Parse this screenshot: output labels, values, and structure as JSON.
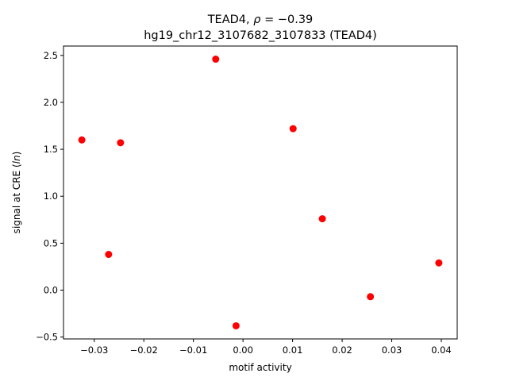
{
  "chart_data": {
    "type": "scatter",
    "title_line1_prefix": "TEAD4, ",
    "title_line1_rho": "ρ",
    "title_line1_suffix": " = −0.39",
    "title_line2": "hg19_chr12_3107682_3107833 (TEAD4)",
    "xlabel": "motif activity",
    "ylabel_prefix": "signal at CRE (",
    "ylabel_italic": "ln",
    "ylabel_suffix": ")",
    "xlim": [
      -0.0362,
      0.0432
    ],
    "ylim": [
      -0.52,
      2.6
    ],
    "xticks": [
      -0.03,
      -0.02,
      -0.01,
      0.0,
      0.01,
      0.02,
      0.03,
      0.04
    ],
    "xtick_labels": [
      "−0.03",
      "−0.02",
      "−0.01",
      "0.00",
      "0.01",
      "0.02",
      "0.03",
      "0.04"
    ],
    "yticks": [
      -0.5,
      0.0,
      0.5,
      1.0,
      1.5,
      2.0,
      2.5
    ],
    "ytick_labels": [
      "−0.5",
      "0.0",
      "0.5",
      "1.0",
      "1.5",
      "2.0",
      "2.5"
    ],
    "grid": false,
    "marker_color": "#ff0000",
    "points": [
      {
        "x": -0.0325,
        "y": 1.6
      },
      {
        "x": -0.0271,
        "y": 0.38
      },
      {
        "x": -0.0247,
        "y": 1.57
      },
      {
        "x": -0.0055,
        "y": 2.46
      },
      {
        "x": -0.0014,
        "y": -0.38
      },
      {
        "x": 0.0101,
        "y": 1.72
      },
      {
        "x": 0.016,
        "y": 0.76
      },
      {
        "x": 0.0257,
        "y": -0.07
      },
      {
        "x": 0.0395,
        "y": 0.29
      }
    ]
  }
}
